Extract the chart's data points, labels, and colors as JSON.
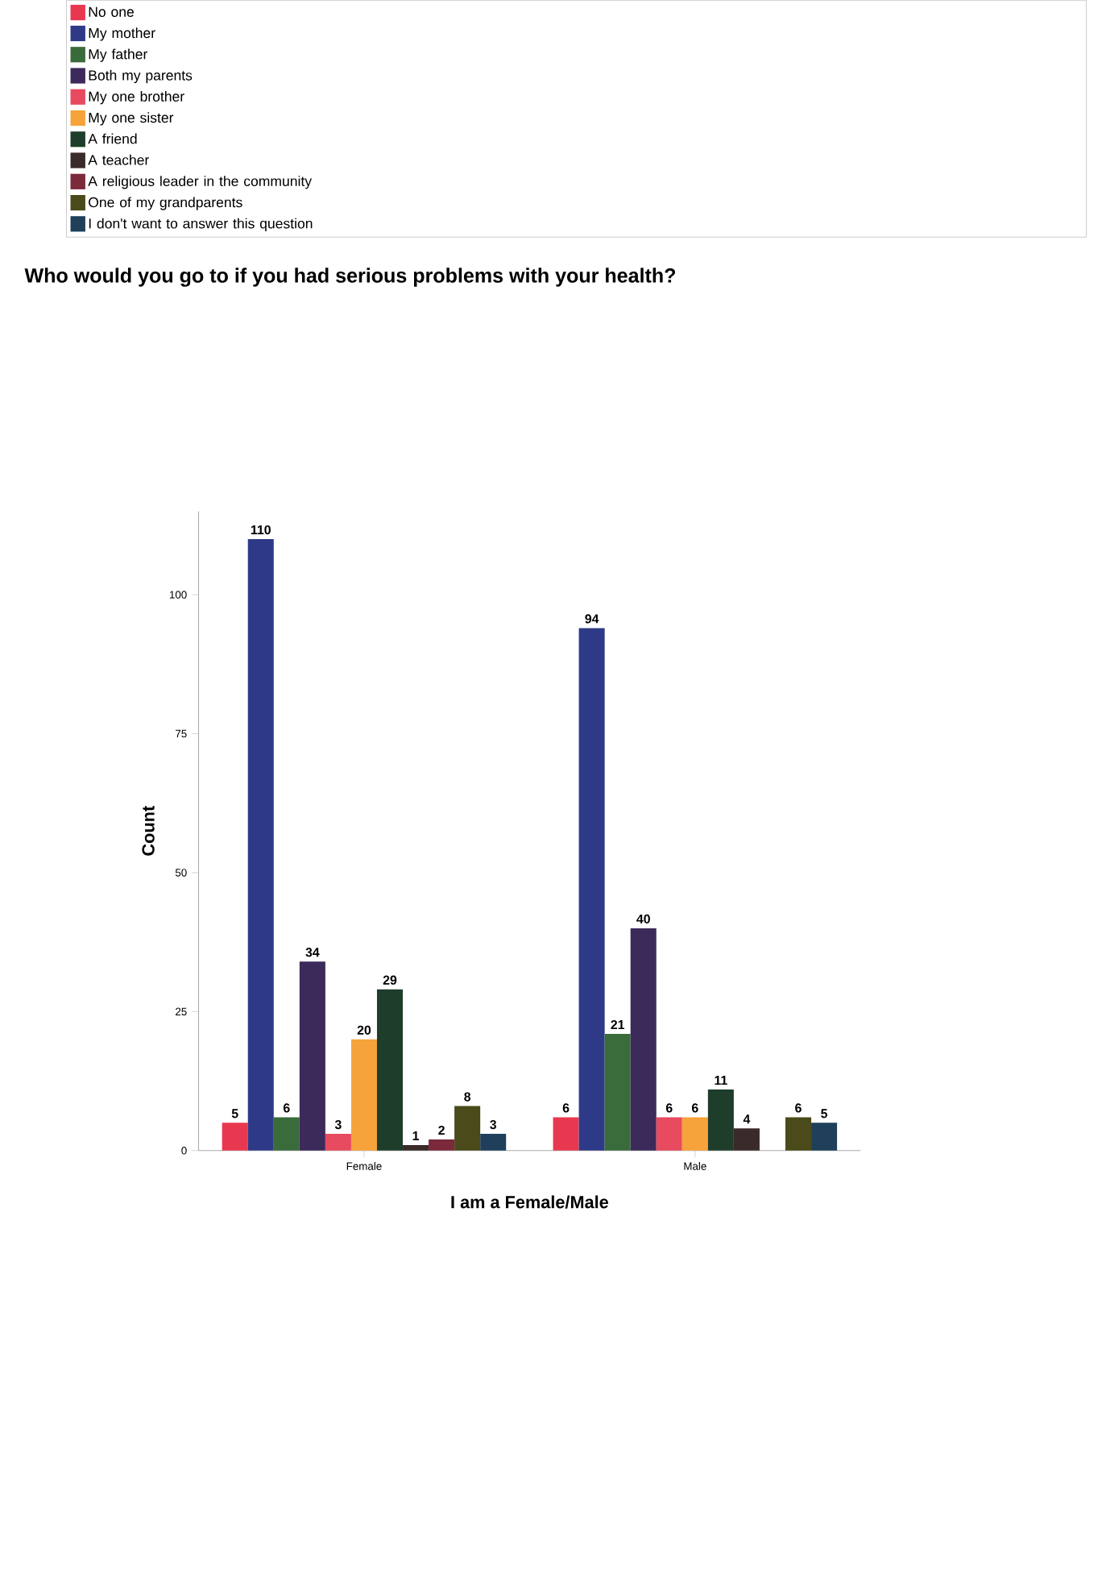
{
  "chart_data": {
    "type": "bar",
    "title": "Who would you go to if you had serious problems with your health?",
    "xlabel": "I am a Female/Male",
    "ylabel": "Count",
    "categories": [
      "Female",
      "Male"
    ],
    "series": [
      {
        "name": "No one",
        "color": "#e8384f",
        "values": [
          5,
          6
        ]
      },
      {
        "name": "My mother",
        "color": "#2e3a87",
        "values": [
          110,
          94
        ]
      },
      {
        "name": "My father",
        "color": "#3a6b3a",
        "values": [
          6,
          21
        ]
      },
      {
        "name": "Both my parents",
        "color": "#3b2a5a",
        "values": [
          34,
          40
        ]
      },
      {
        "name": "My one brother",
        "color": "#e84a5f",
        "values": [
          3,
          6
        ]
      },
      {
        "name": "My one sister",
        "color": "#f5a33a",
        "values": [
          20,
          6
        ]
      },
      {
        "name": "A friend",
        "color": "#1e3d2a",
        "values": [
          29,
          11
        ]
      },
      {
        "name": "A teacher",
        "color": "#3a2a2a",
        "values": [
          1,
          4
        ]
      },
      {
        "name": "A religious leader in the community",
        "color": "#7a2a3a",
        "values": [
          2,
          null
        ]
      },
      {
        "name": "One of my grandparents",
        "color": "#4a4a1a",
        "values": [
          8,
          6
        ]
      },
      {
        "name": "I don't want to answer this question",
        "color": "#1f3f5a",
        "values": [
          3,
          5
        ]
      }
    ],
    "ylim": [
      0,
      115
    ],
    "yticks": [
      0,
      25,
      50,
      75,
      100
    ],
    "data_labels": true,
    "legend": "top left"
  }
}
